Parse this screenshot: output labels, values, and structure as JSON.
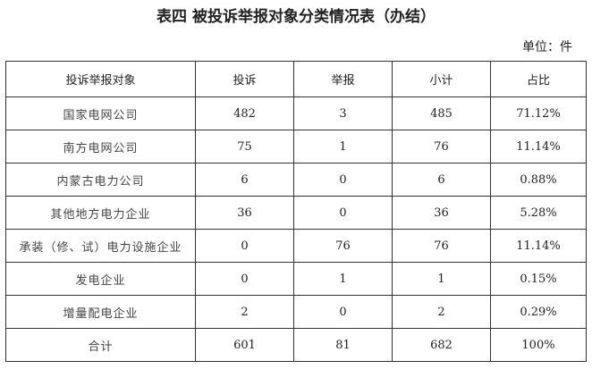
{
  "title": "表四  被投诉举报对象分类情况表（办结）",
  "unit": "单位：件",
  "headers": [
    "投诉举报对象",
    "投诉",
    "举报",
    "小计",
    "占比"
  ],
  "rows": [
    [
      "国家电网公司",
      "482",
      "3",
      "485",
      "71.12%"
    ],
    [
      "南方电网公司",
      "75",
      "1",
      "76",
      "11.14%"
    ],
    [
      "内蒙古电力公司",
      "6",
      "0",
      "6",
      "0.88%"
    ],
    [
      "其他地方电力企业",
      "36",
      "0",
      "36",
      "5.28%"
    ],
    [
      "承装（修、试）电力设施企业",
      "0",
      "76",
      "76",
      "11.14%"
    ],
    [
      "发电企业",
      "0",
      "1",
      "1",
      "0.15%"
    ],
    [
      "增量配电企业",
      "2",
      "0",
      "2",
      "0.29%"
    ],
    [
      "合计",
      "601",
      "81",
      "682",
      "100%"
    ]
  ]
}
